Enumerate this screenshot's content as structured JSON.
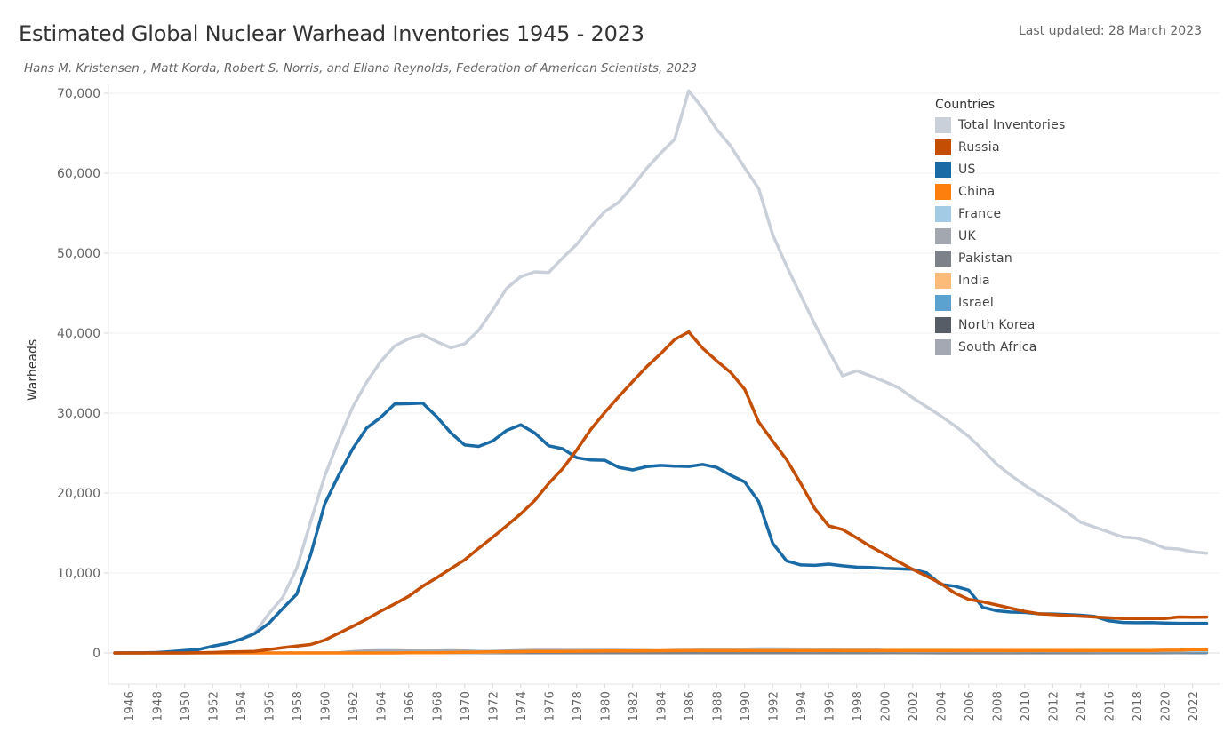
{
  "header": {
    "title": "Estimated Global Nuclear Warhead Inventories 1945 - 2023",
    "subtitle": "Hans M. Kristensen , Matt Korda, Robert S. Norris, and Eliana Reynolds, Federation of American Scientists, 2023",
    "last_updated": "Last updated: 28 March 2023"
  },
  "legend": {
    "title": "Countries",
    "items": [
      {
        "label": "Total  Inventories",
        "color": "#c9d0d9"
      },
      {
        "label": "Russia",
        "color": "#c44e04"
      },
      {
        "label": "US",
        "color": "#1a6aa5"
      },
      {
        "label": "China",
        "color": "#fd7f0e"
      },
      {
        "label": "France",
        "color": "#a4cbe6"
      },
      {
        "label": "UK",
        "color": "#a3a8b0"
      },
      {
        "label": "Pakistan",
        "color": "#7c818a"
      },
      {
        "label": "India",
        "color": "#fdbb79"
      },
      {
        "label": "Israel",
        "color": "#5ba2d1"
      },
      {
        "label": "North  Korea",
        "color": "#575d66"
      },
      {
        "label": "South Africa",
        "color": "#a3a8b2"
      }
    ]
  },
  "chart_data": {
    "type": "line",
    "title": "Estimated Global Nuclear Warhead Inventories 1945 - 2023",
    "xlabel": "",
    "ylabel": "Warheads",
    "xlim": [
      1945,
      2023
    ],
    "ylim": [
      0,
      70000
    ],
    "y_ticks": [
      0,
      10000,
      20000,
      30000,
      40000,
      50000,
      60000,
      70000
    ],
    "y_tick_labels": [
      "0",
      "10,000",
      "20,000",
      "30,000",
      "40,000",
      "50,000",
      "60,000",
      "70,000"
    ],
    "x_tick_labels": [
      "1946",
      "1948",
      "1950",
      "1952",
      "1954",
      "1956",
      "1958",
      "1960",
      "1962",
      "1964",
      "1966",
      "1968",
      "1970",
      "1972",
      "1974",
      "1976",
      "1978",
      "1980",
      "1982",
      "1984",
      "1986",
      "1988",
      "1990",
      "1992",
      "1994",
      "1996",
      "1998",
      "2000",
      "2002",
      "2004",
      "2006",
      "2008",
      "2010",
      "2012",
      "2014",
      "2016",
      "2018",
      "2020",
      "2022"
    ],
    "x": [
      1945,
      1946,
      1947,
      1948,
      1949,
      1950,
      1951,
      1952,
      1953,
      1954,
      1955,
      1956,
      1957,
      1958,
      1959,
      1960,
      1961,
      1962,
      1963,
      1964,
      1965,
      1966,
      1967,
      1968,
      1969,
      1970,
      1971,
      1972,
      1973,
      1974,
      1975,
      1976,
      1977,
      1978,
      1979,
      1980,
      1981,
      1982,
      1983,
      1984,
      1985,
      1986,
      1987,
      1988,
      1989,
      1990,
      1991,
      1992,
      1993,
      1994,
      1995,
      1996,
      1997,
      1998,
      1999,
      2000,
      2001,
      2002,
      2003,
      2004,
      2005,
      2006,
      2007,
      2008,
      2009,
      2010,
      2011,
      2012,
      2013,
      2014,
      2015,
      2016,
      2017,
      2018,
      2019,
      2020,
      2021,
      2022,
      2023
    ],
    "grid": true,
    "legend_position": "top-right",
    "series": [
      {
        "name": "Total  Inventories",
        "color": "#c9d0d9",
        "values": [
          2,
          9,
          13,
          50,
          170,
          304,
          438,
          841,
          1169,
          1703,
          2490,
          4888,
          6943,
          10577,
          16427,
          22107,
          26622,
          30760,
          33875,
          36463,
          38389,
          39297,
          39798,
          38928,
          38173,
          38654,
          40364,
          42881,
          45605,
          47071,
          47668,
          47582,
          49416,
          51091,
          53283,
          55198,
          56352,
          58373,
          60603,
          62510,
          64244,
          70300,
          68125,
          65488,
          63402,
          60664,
          58081,
          52310,
          48373,
          44736,
          41158,
          37794,
          34661,
          35292,
          34647,
          33949,
          33162,
          31910,
          30792,
          29653,
          28418,
          27073,
          25398,
          23616,
          22232,
          20977,
          19858,
          18800,
          17630,
          16330,
          15735,
          15115,
          14505,
          14360,
          13850,
          13115,
          13000,
          12645,
          12480
        ]
      },
      {
        "name": "Russia",
        "color": "#c44e04",
        "values": [
          0,
          0,
          0,
          0,
          1,
          5,
          25,
          50,
          120,
          150,
          200,
          426,
          660,
          869,
          1060,
          1605,
          2471,
          3322,
          4238,
          5221,
          6129,
          7089,
          8339,
          9399,
          10538,
          11643,
          13092,
          14478,
          15915,
          17385,
          19055,
          21205,
          23044,
          25393,
          27935,
          30062,
          32049,
          33952,
          35804,
          37431,
          39197,
          40159,
          38107,
          36538,
          35078,
          32980,
          28898,
          26499,
          24171,
          21203,
          18077,
          15886,
          15429,
          14391,
          13313,
          12343,
          11400,
          10460,
          9600,
          8700,
          7500,
          6700,
          6400,
          6000,
          5600,
          5200,
          4900,
          4800,
          4700,
          4600,
          4500,
          4400,
          4300,
          4300,
          4300,
          4300,
          4500,
          4477,
          4489
        ]
      },
      {
        "name": "US",
        "color": "#1a6aa5",
        "values": [
          2,
          9,
          13,
          50,
          170,
          299,
          438,
          841,
          1169,
          1703,
          2422,
          3692,
          5543,
          7345,
          12298,
          18638,
          22229,
          25540,
          28133,
          29463,
          31139,
          31175,
          31255,
          29561,
          27552,
          26008,
          25830,
          26516,
          27835,
          28537,
          27519,
          25914,
          25542,
          24418,
          24138,
          24104,
          23208,
          22886,
          23305,
          23459,
          23368,
          23317,
          23575,
          23205,
          22217,
          21392,
          18929,
          13708,
          11511,
          11011,
          10953,
          11111,
          10903,
          10732,
          10685,
          10577,
          10526,
          10457,
          10027,
          8570,
          8360,
          7853,
          5709,
          5273,
          5113,
          5066,
          4897,
          4881,
          4804,
          4717,
          4571,
          4018,
          3822,
          3785,
          3805,
          3750,
          3708,
          3708,
          3708
        ]
      },
      {
        "name": "China",
        "color": "#fd7f0e",
        "values": [
          0,
          0,
          0,
          0,
          0,
          0,
          0,
          0,
          0,
          0,
          0,
          0,
          0,
          0,
          0,
          0,
          0,
          0,
          0,
          0,
          5,
          20,
          25,
          35,
          50,
          75,
          100,
          130,
          150,
          170,
          185,
          190,
          200,
          210,
          220,
          240,
          250,
          260,
          270,
          280,
          290,
          300,
          300,
          300,
          300,
          300,
          300,
          300,
          300,
          300,
          300,
          300,
          300,
          300,
          300,
          300,
          300,
          300,
          300,
          300,
          300,
          300,
          300,
          300,
          300,
          300,
          300,
          300,
          300,
          300,
          300,
          300,
          300,
          300,
          300,
          350,
          350,
          410,
          410
        ]
      },
      {
        "name": "France",
        "color": "#a4cbe6",
        "values": [
          0,
          0,
          0,
          0,
          0,
          0,
          0,
          0,
          0,
          0,
          0,
          0,
          0,
          0,
          0,
          0,
          0,
          0,
          0,
          0,
          4,
          36,
          36,
          36,
          36,
          36,
          45,
          70,
          116,
          145,
          188,
          212,
          228,
          235,
          235,
          250,
          274,
          274,
          279,
          280,
          360,
          355,
          420,
          411,
          412,
          504,
          540,
          540,
          525,
          510,
          500,
          500,
          450,
          450,
          450,
          350,
          350,
          350,
          350,
          350,
          350,
          350,
          300,
          300,
          300,
          300,
          300,
          300,
          300,
          300,
          300,
          300,
          300,
          300,
          300,
          290,
          290,
          290,
          290
        ]
      },
      {
        "name": "UK",
        "color": "#a3a8b0",
        "values": [
          0,
          0,
          0,
          0,
          0,
          0,
          0,
          0,
          0,
          5,
          10,
          15,
          20,
          22,
          25,
          30,
          50,
          205,
          280,
          310,
          310,
          280,
          270,
          280,
          308,
          280,
          220,
          220,
          275,
          325,
          350,
          350,
          350,
          350,
          350,
          350,
          350,
          335,
          320,
          270,
          300,
          300,
          300,
          300,
          300,
          300,
          300,
          300,
          300,
          250,
          250,
          281,
          260,
          240,
          230,
          230,
          230,
          215,
          215,
          215,
          225,
          225,
          225,
          225,
          225,
          225,
          225,
          225,
          225,
          225,
          215,
          215,
          215,
          215,
          215,
          225,
          225,
          225,
          225
        ]
      },
      {
        "name": "Pakistan",
        "color": "#7c818a",
        "values": [
          0,
          0,
          0,
          0,
          0,
          0,
          0,
          0,
          0,
          0,
          0,
          0,
          0,
          0,
          0,
          0,
          0,
          0,
          0,
          0,
          0,
          0,
          0,
          0,
          0,
          0,
          0,
          0,
          0,
          0,
          0,
          0,
          0,
          0,
          0,
          0,
          0,
          0,
          0,
          0,
          0,
          0,
          0,
          0,
          0,
          0,
          0,
          0,
          0,
          0,
          0,
          0,
          0,
          2,
          5,
          10,
          20,
          30,
          40,
          50,
          60,
          70,
          80,
          90,
          100,
          110,
          115,
          120,
          130,
          140,
          150,
          150,
          150,
          160,
          160,
          165,
          165,
          165,
          170
        ]
      },
      {
        "name": "India",
        "color": "#fdbb79",
        "values": [
          0,
          0,
          0,
          0,
          0,
          0,
          0,
          0,
          0,
          0,
          0,
          0,
          0,
          0,
          0,
          0,
          0,
          0,
          0,
          0,
          0,
          0,
          0,
          0,
          0,
          0,
          0,
          0,
          0,
          0,
          0,
          0,
          0,
          0,
          0,
          0,
          0,
          0,
          0,
          0,
          0,
          0,
          0,
          0,
          0,
          0,
          0,
          0,
          0,
          0,
          0,
          0,
          0,
          5,
          10,
          15,
          25,
          35,
          45,
          55,
          65,
          70,
          75,
          80,
          90,
          100,
          110,
          110,
          120,
          130,
          140,
          150,
          150,
          150,
          150,
          156,
          160,
          164,
          164
        ]
      },
      {
        "name": "Israel",
        "color": "#5ba2d1",
        "values": [
          0,
          0,
          0,
          0,
          0,
          0,
          0,
          0,
          0,
          0,
          0,
          0,
          0,
          0,
          0,
          0,
          0,
          0,
          0,
          0,
          0,
          0,
          2,
          6,
          10,
          15,
          20,
          25,
          30,
          35,
          40,
          45,
          50,
          55,
          60,
          60,
          60,
          60,
          60,
          60,
          60,
          60,
          60,
          60,
          60,
          60,
          60,
          60,
          60,
          60,
          60,
          60,
          60,
          60,
          60,
          60,
          60,
          70,
          80,
          80,
          80,
          80,
          80,
          80,
          80,
          80,
          80,
          80,
          80,
          80,
          80,
          80,
          80,
          80,
          90,
          90,
          90,
          90,
          90
        ]
      },
      {
        "name": "North  Korea",
        "color": "#575d66",
        "values": [
          0,
          0,
          0,
          0,
          0,
          0,
          0,
          0,
          0,
          0,
          0,
          0,
          0,
          0,
          0,
          0,
          0,
          0,
          0,
          0,
          0,
          0,
          0,
          0,
          0,
          0,
          0,
          0,
          0,
          0,
          0,
          0,
          0,
          0,
          0,
          0,
          0,
          0,
          0,
          0,
          0,
          0,
          0,
          0,
          0,
          0,
          0,
          0,
          0,
          0,
          0,
          0,
          0,
          0,
          0,
          0,
          0,
          0,
          0,
          0,
          0,
          2,
          2,
          4,
          4,
          6,
          8,
          10,
          12,
          15,
          15,
          20,
          20,
          25,
          30,
          35,
          40,
          30,
          30
        ]
      },
      {
        "name": "South Africa",
        "color": "#a3a8b2",
        "values": [
          0,
          0,
          0,
          0,
          0,
          0,
          0,
          0,
          0,
          0,
          0,
          0,
          0,
          0,
          0,
          0,
          0,
          0,
          0,
          0,
          0,
          0,
          0,
          0,
          0,
          0,
          0,
          0,
          0,
          0,
          0,
          0,
          0,
          0,
          0,
          0,
          0,
          0,
          1,
          2,
          3,
          4,
          5,
          5,
          6,
          6,
          0,
          0,
          0,
          0,
          0,
          0,
          0,
          0,
          0,
          0,
          0,
          0,
          0,
          0,
          0,
          0,
          0,
          0,
          0,
          0,
          0,
          0,
          0,
          0,
          0,
          0,
          0,
          0,
          0,
          0,
          0,
          0,
          0
        ]
      }
    ]
  }
}
